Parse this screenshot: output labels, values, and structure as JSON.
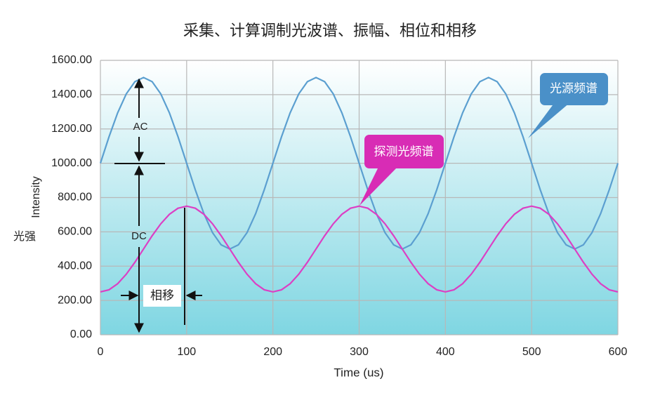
{
  "chart_data": {
    "type": "line",
    "title": "采集、计算调制光波谱、振幅、相位和相移",
    "x_label": "Time (us)",
    "y_label": "Intensity",
    "y_label_cn": "光强",
    "annotations": {
      "ac": "AC",
      "dc": "DC",
      "phase_shift": "相移"
    },
    "x": [
      0,
      10,
      20,
      30,
      40,
      50,
      60,
      70,
      80,
      90,
      100,
      110,
      120,
      130,
      140,
      150,
      160,
      170,
      180,
      190,
      200,
      210,
      220,
      230,
      240,
      250,
      260,
      270,
      280,
      290,
      300,
      310,
      320,
      330,
      340,
      350,
      360,
      370,
      380,
      390,
      400,
      410,
      420,
      430,
      440,
      450,
      460,
      470,
      480,
      490,
      500,
      510,
      520,
      530,
      540,
      550,
      560,
      570,
      580,
      590,
      600
    ],
    "series": [
      {
        "name": "光源频谱",
        "color": "#5b9fd0",
        "values": [
          1000,
          1154.5,
          1293.9,
          1404.5,
          1475.5,
          1500,
          1475.5,
          1404.5,
          1293.9,
          1154.5,
          1000,
          845.5,
          706.1,
          595.5,
          524.5,
          500,
          524.5,
          595.5,
          706.1,
          845.5,
          1000,
          1154.5,
          1293.9,
          1404.5,
          1475.5,
          1500,
          1475.5,
          1404.5,
          1293.9,
          1154.5,
          1000,
          845.5,
          706.1,
          595.5,
          524.5,
          500,
          524.5,
          595.5,
          706.1,
          845.5,
          1000,
          1154.5,
          1293.9,
          1404.5,
          1475.5,
          1500,
          1475.5,
          1404.5,
          1293.9,
          1154.5,
          1000,
          845.5,
          706.1,
          595.5,
          524.5,
          500,
          524.5,
          595.5,
          706.1,
          845.5,
          1000
        ]
      },
      {
        "name": "探测光频谱",
        "color": "#dc3fc4",
        "values": [
          250,
          262.2,
          297.7,
          353.1,
          422.7,
          500,
          577.3,
          646.9,
          702.3,
          737.8,
          750,
          737.8,
          702.3,
          646.9,
          577.3,
          500,
          422.7,
          353.1,
          297.7,
          262.2,
          250,
          262.2,
          297.7,
          353.1,
          422.7,
          500,
          577.3,
          646.9,
          702.3,
          737.8,
          750,
          737.8,
          702.3,
          646.9,
          577.3,
          500,
          422.7,
          353.1,
          297.7,
          262.2,
          250,
          262.2,
          297.7,
          353.1,
          422.7,
          500,
          577.3,
          646.9,
          702.3,
          737.8,
          750,
          737.8,
          702.3,
          646.9,
          577.3,
          500,
          422.7,
          353.1,
          297.7,
          262.2,
          250
        ]
      }
    ],
    "xlim": [
      0,
      600
    ],
    "xticks": [
      0,
      100,
      200,
      300,
      400,
      500,
      600
    ],
    "ylim": [
      0,
      1600
    ],
    "yticks": [
      {
        "value": 0,
        "label": "0.00"
      },
      {
        "value": 200,
        "label": "200.00"
      },
      {
        "value": 400,
        "label": "400.00"
      },
      {
        "value": 600,
        "label": "600.00"
      },
      {
        "value": 800,
        "label": "800.00"
      },
      {
        "value": 1000,
        "label": "1000.00"
      },
      {
        "value": 1200,
        "label": "1200.00"
      },
      {
        "value": 1400,
        "label": "1400.00"
      },
      {
        "value": 1600,
        "label": "1600.00"
      }
    ],
    "grid": true
  }
}
